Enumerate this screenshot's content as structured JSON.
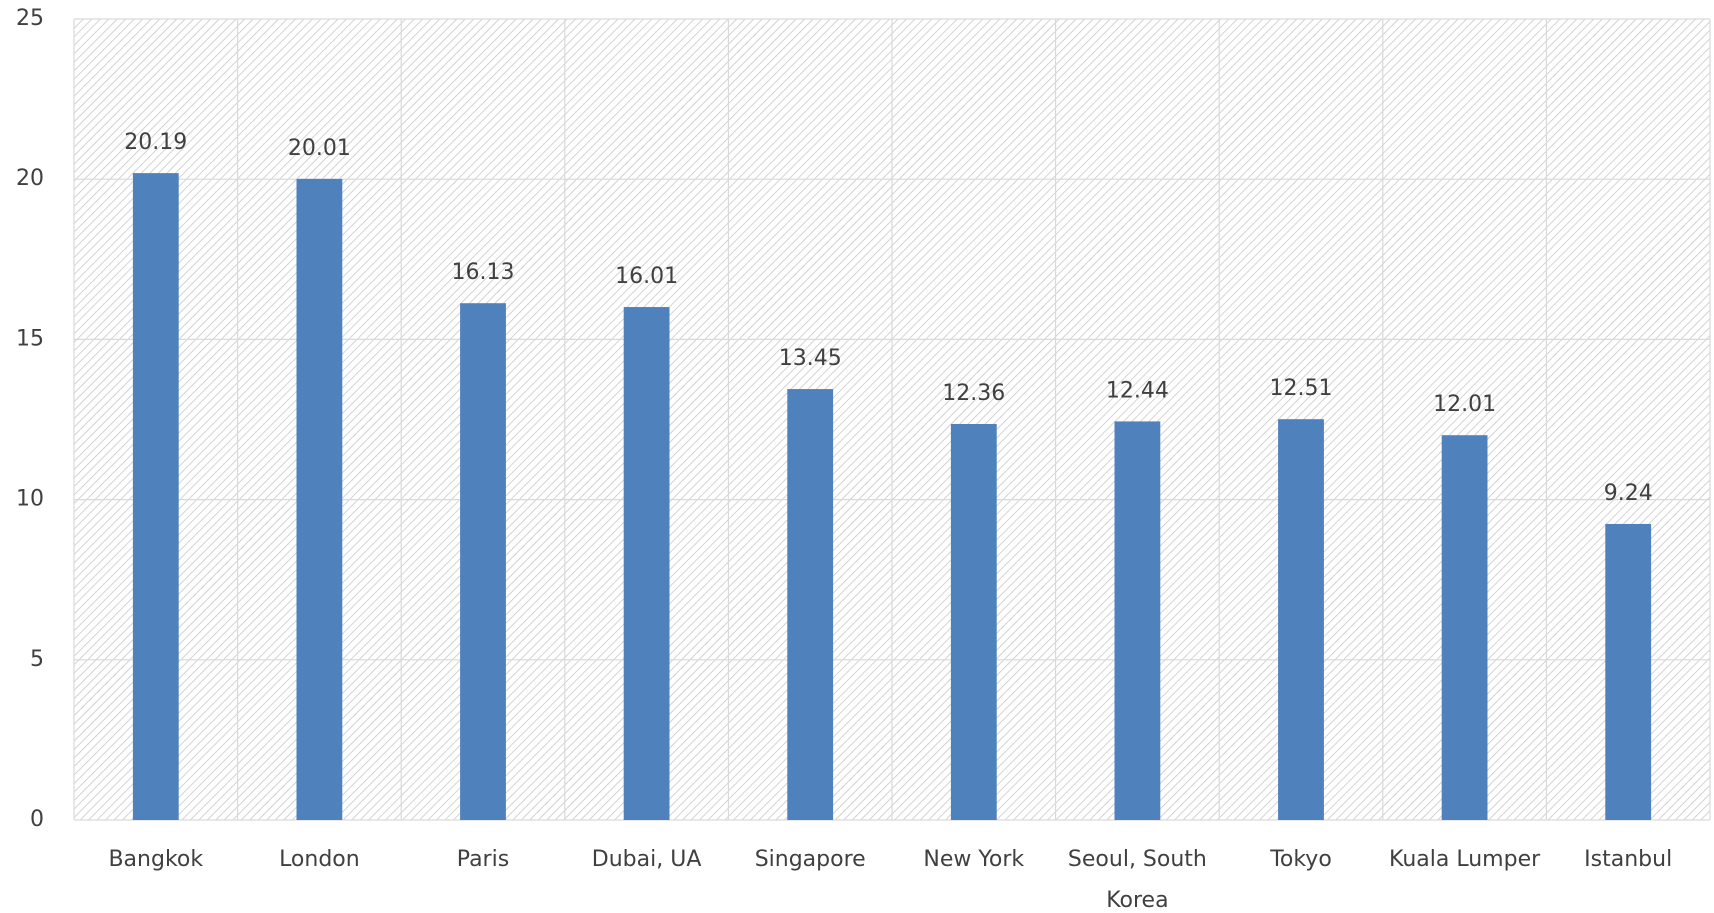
{
  "chart_data": {
    "type": "bar",
    "categories": [
      "Bangkok",
      "London",
      "Paris",
      "Dubai, UA",
      "Singapore",
      "New York",
      "Seoul, South Korea",
      "Tokyo",
      "Kuala Lumper",
      "Istanbul"
    ],
    "values": [
      20.19,
      20.01,
      16.13,
      16.01,
      13.45,
      12.36,
      12.44,
      12.51,
      12.01,
      9.24
    ],
    "color": "#4f81bd",
    "ylim": [
      0,
      25
    ],
    "yticks": [
      0,
      5,
      10,
      15,
      20,
      25
    ],
    "grid": true
  }
}
